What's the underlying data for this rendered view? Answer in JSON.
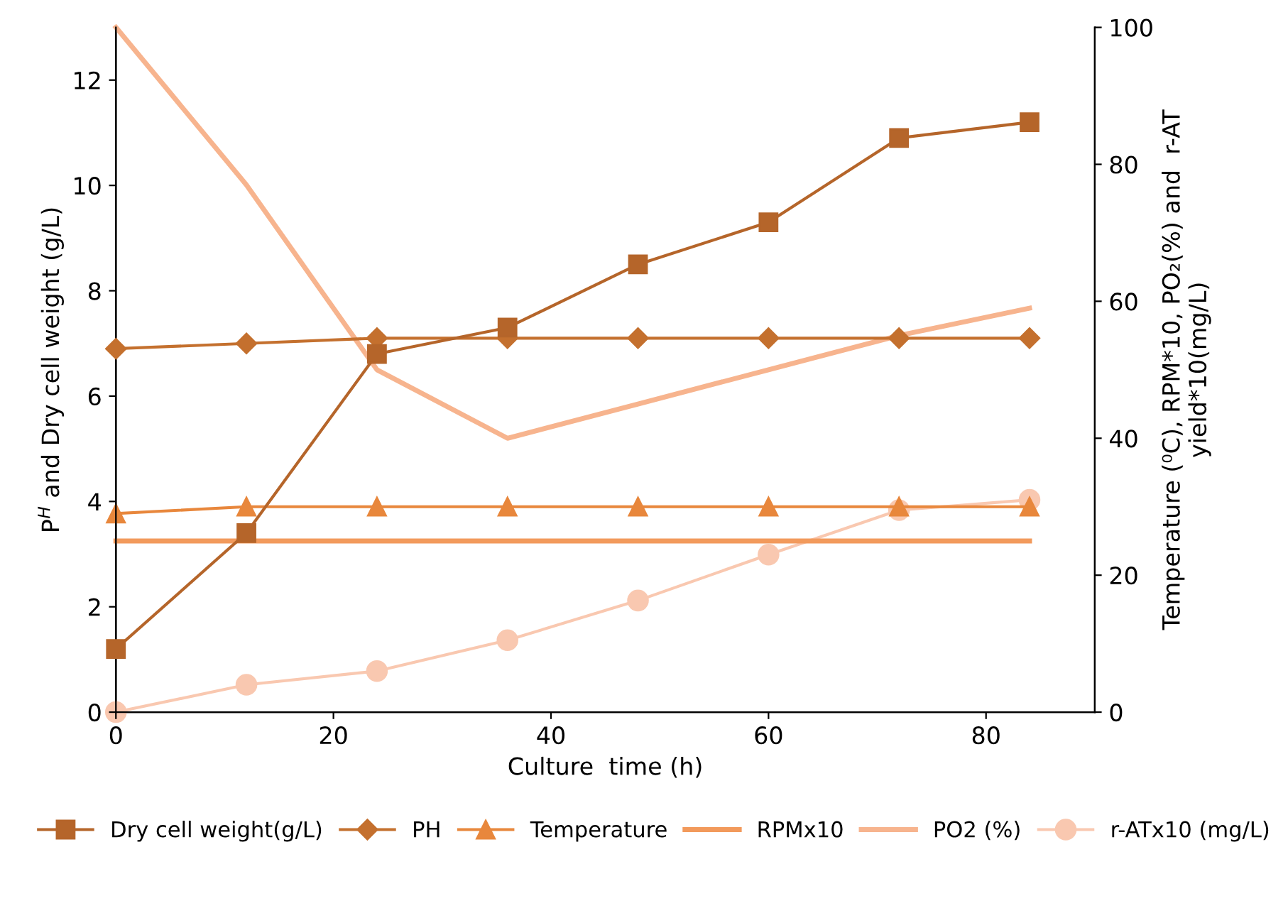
{
  "chart_data": {
    "type": "line",
    "xlabel": "Culture  time (h)",
    "ylabel": "P$^{H}$ and Dry cell weight (g/L)",
    "y2label": "Temperature (⁰C), RPM*10, PO₂(%) and  r-AT\nyield*10(mg/L)",
    "x": [
      0,
      12,
      24,
      36,
      48,
      60,
      72,
      84
    ],
    "xlim": [
      0,
      90
    ],
    "xticks": [
      0,
      20,
      40,
      60,
      80
    ],
    "ylim": [
      0,
      13
    ],
    "yticks": [
      0,
      2,
      4,
      6,
      8,
      10,
      12
    ],
    "y2lim": [
      0,
      100
    ],
    "y2ticks": [
      0,
      20,
      40,
      60,
      80,
      100
    ],
    "grid": false,
    "legend": "bottom",
    "line_style": "solid",
    "series": [
      {
        "name": "Dry cell weight(g/L)",
        "color": "#b5652a",
        "marker": "square",
        "values": [
          1.2,
          3.4,
          6.8,
          7.3,
          8.5,
          9.3,
          10.9,
          11.2
        ]
      },
      {
        "name": "PH",
        "color": "#c4702e",
        "marker": "diamond",
        "values": [
          6.9,
          7.0,
          7.1,
          7.1,
          7.1,
          7.1,
          7.1,
          7.1
        ]
      },
      {
        "name": "Temperature",
        "color": "#e8873c",
        "marker": "triangle",
        "axis": "y2",
        "values": [
          29,
          30,
          30,
          30,
          30,
          30,
          30,
          30
        ]
      },
      {
        "name": "RPMx10",
        "color": "#f29a5c",
        "marker": "none",
        "axis": "y2",
        "values": [
          25,
          25,
          25,
          25,
          25,
          25,
          25,
          25
        ]
      },
      {
        "name": "PO2 (%)",
        "color": "#f7b48e",
        "marker": "none",
        "axis": "y2",
        "values": [
          100,
          77,
          50,
          40,
          45,
          50,
          55,
          59
        ]
      },
      {
        "name": "r-ATx10 (mg/L)",
        "color": "#f9c8b0",
        "marker": "circle",
        "axis": "y2",
        "values": [
          0,
          4,
          6,
          10.5,
          16.3,
          23,
          29.5,
          31
        ]
      }
    ]
  }
}
